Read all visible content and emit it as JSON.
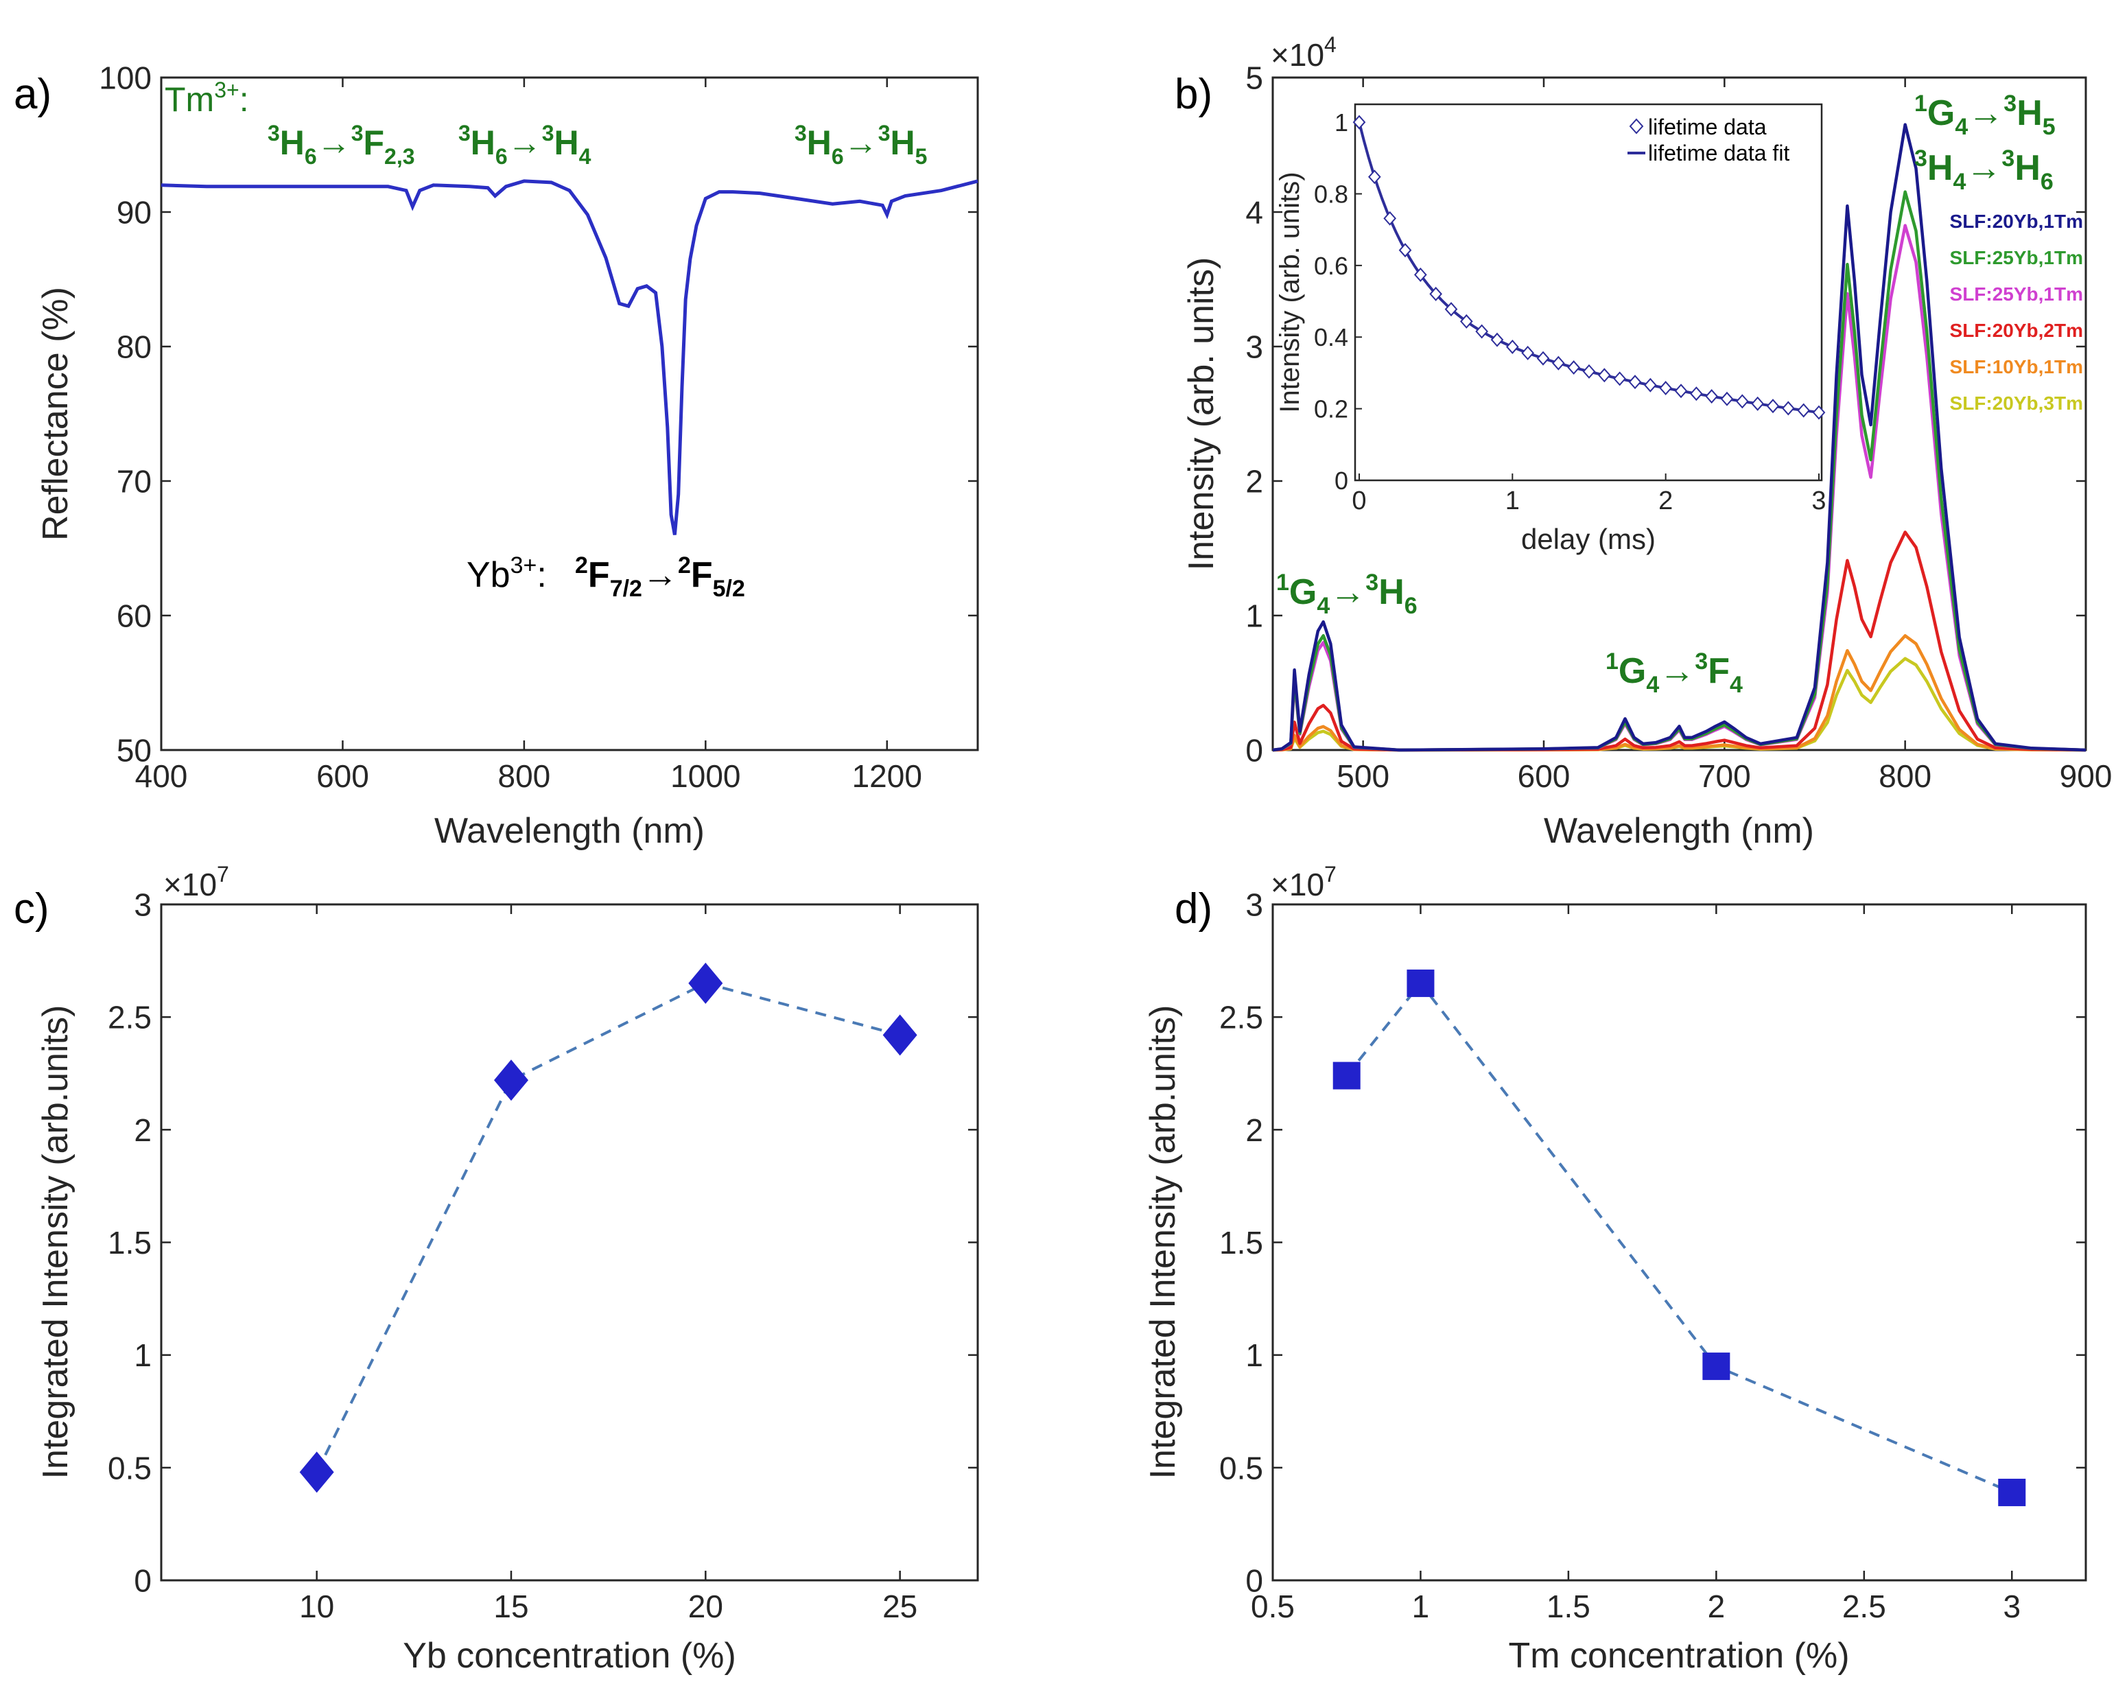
{
  "colors": {
    "line_blue": "#2b2fc4",
    "marker_blue": "#2222cc",
    "dash_blue": "#4a7ab5",
    "label_green": "#1f7a1f",
    "inset_line": "#2e2e9a"
  },
  "chart_data": [
    {
      "panel": "a)",
      "type": "line",
      "title": "",
      "xlabel": "Wavelength (nm)",
      "ylabel": "Reflectance (%)",
      "xlim": [
        400,
        1300
      ],
      "ylim": [
        50,
        100
      ],
      "xticks": [
        "400",
        "600",
        "800",
        "1000",
        "1200"
      ],
      "yticks": [
        "50",
        "60",
        "70",
        "80",
        "90",
        "100"
      ],
      "series": [
        {
          "name": "reflectance",
          "x": [
            400,
            450,
            500,
            550,
            600,
            650,
            670,
            677,
            685,
            700,
            740,
            760,
            768,
            780,
            800,
            830,
            850,
            870,
            890,
            905,
            915,
            925,
            935,
            945,
            952,
            958,
            962,
            966,
            970,
            974,
            978,
            983,
            990,
            1000,
            1015,
            1030,
            1060,
            1100,
            1140,
            1170,
            1195,
            1200,
            1205,
            1220,
            1260,
            1300
          ],
          "y": [
            92,
            91.9,
            91.9,
            91.9,
            91.9,
            91.9,
            91.6,
            90.4,
            91.6,
            92,
            91.9,
            91.8,
            91.2,
            91.9,
            92.3,
            92.2,
            91.6,
            89.8,
            86.6,
            83.2,
            83.0,
            84.3,
            84.5,
            84.0,
            80.0,
            74.0,
            67.5,
            66.0,
            69.0,
            77.0,
            83.5,
            86.5,
            89.0,
            91.0,
            91.5,
            91.5,
            91.4,
            91.0,
            90.6,
            90.8,
            90.5,
            89.8,
            90.8,
            91.2,
            91.6,
            92.3
          ]
        }
      ],
      "annotations": {
        "tm_prefix": "Tm",
        "tm_charge": "3+",
        "tm_colon": ":",
        "t1": {
          "a": "3",
          "b": "H",
          "c": "6",
          "d": "→",
          "e": "3",
          "f": "F",
          "g": "2,3"
        },
        "t2": {
          "a": "3",
          "b": "H",
          "c": "6",
          "d": "→",
          "e": "3",
          "f": "H",
          "g": "4"
        },
        "t3": {
          "a": "3",
          "b": "H",
          "c": "6",
          "d": "→",
          "e": "3",
          "f": "H",
          "g": "5"
        },
        "yb_prefix": "Yb",
        "yb_charge": "3+",
        "yb_colon": ":",
        "yb": {
          "a": "2",
          "b": "F",
          "c": "7/2",
          "d": "→",
          "e": "2",
          "f": "F",
          "g": "5/2"
        }
      }
    },
    {
      "panel": "b)",
      "type": "line",
      "xlabel": "Wavelength (nm)",
      "ylabel": "Intensity (arb. units)",
      "xlim": [
        450,
        900
      ],
      "ylim": [
        0,
        50000
      ],
      "multiplier_base": "×10",
      "multiplier_exp": "4",
      "xticks": [
        "500",
        "600",
        "700",
        "800",
        "900"
      ],
      "yticks": [
        "0",
        "1",
        "2",
        "3",
        "4",
        "5"
      ],
      "series": [
        {
          "name": "SLF:20Yb,1Tm",
          "color": "#1a1a8c",
          "peak": 46500
        },
        {
          "name": "SLF:25Yb,1Tm",
          "color": "#2e9a2e",
          "peak": 41500
        },
        {
          "name": "SLF:25Yb,1Tm",
          "color": "#d040d0",
          "peak": 39000
        },
        {
          "name": "SLF:20Yb,2Tm",
          "color": "#e02020",
          "peak": 16200
        },
        {
          "name": "SLF:10Yb,1Tm",
          "color": "#f08a20",
          "peak": 8500
        },
        {
          "name": "SLF:20Yb,3Tm",
          "color": "#c8c820",
          "peak": 6800
        }
      ],
      "peak_shape": {
        "x": [
          450,
          455,
          460,
          462,
          465,
          470,
          475,
          478,
          482,
          488,
          495,
          520,
          600,
          630,
          640,
          645,
          650,
          655,
          662,
          670,
          675,
          678,
          682,
          690,
          695,
          700,
          705,
          712,
          720,
          740,
          750,
          757,
          762,
          768,
          772,
          776,
          781,
          786,
          792,
          800,
          806,
          812,
          820,
          830,
          840,
          850,
          870,
          900
        ],
        "y": [
          0,
          0.002,
          0.012,
          0.128,
          0.03,
          0.12,
          0.19,
          0.205,
          0.17,
          0.04,
          0.005,
          0,
          0.002,
          0.004,
          0.02,
          0.05,
          0.02,
          0.01,
          0.012,
          0.02,
          0.038,
          0.02,
          0.02,
          0.03,
          0.038,
          0.045,
          0.035,
          0.02,
          0.01,
          0.02,
          0.1,
          0.3,
          0.6,
          0.87,
          0.75,
          0.6,
          0.52,
          0.68,
          0.86,
          1.0,
          0.93,
          0.75,
          0.45,
          0.18,
          0.05,
          0.01,
          0.003,
          0
        ]
      },
      "annotations": {
        "g1": {
          "a": "1",
          "b": "G",
          "c": "4",
          "d": "→",
          "e": "3",
          "f": "H",
          "g": "6"
        },
        "g2": {
          "a": "1",
          "b": "G",
          "c": "4",
          "d": "→",
          "e": "3",
          "f": "F",
          "g": "4"
        },
        "g3": {
          "a": "1",
          "b": "G",
          "c": "4",
          "d": "→",
          "e": "3",
          "f": "H",
          "g": "5"
        },
        "g4": {
          "a": "3",
          "b": "H",
          "c": "4",
          "d": "→",
          "e": "3",
          "f": "H",
          "g": "6"
        }
      },
      "inset": {
        "type": "scatter+line",
        "xlabel": "delay (ms)",
        "ylabel": "Intensity (arb. units)",
        "xlim": [
          0,
          3
        ],
        "ylim": [
          0,
          1.05
        ],
        "xticks": [
          "0",
          "1",
          "2",
          "3"
        ],
        "yticks": [
          "0",
          "0.2",
          "0.4",
          "0.6",
          "0.8",
          "1"
        ],
        "legend": [
          "lifetime data",
          "lifetime data fit"
        ],
        "model": {
          "a1": 0.53,
          "t1": 0.33,
          "a2": 0.47,
          "t2": 3.3
        }
      }
    },
    {
      "panel": "c)",
      "type": "scatter",
      "marker": "diamond",
      "xlabel": "Yb concentration  (%)",
      "ylabel": "Integrated Intensity (arb.units)",
      "xlim": [
        6,
        27
      ],
      "ylim": [
        0,
        30000000
      ],
      "multiplier_base": "×10",
      "multiplier_exp": "7",
      "xticks": [
        "10",
        "15",
        "20",
        "25"
      ],
      "yticks": [
        "0",
        "0.5",
        "1",
        "1.5",
        "2",
        "2.5",
        "3"
      ],
      "x": [
        10,
        15,
        20,
        25
      ],
      "y": [
        4800000,
        22200000,
        26500000,
        24200000
      ]
    },
    {
      "panel": "d)",
      "type": "scatter",
      "marker": "square",
      "xlabel": "Tm concentration  (%)",
      "ylabel": "Integrated Intensity (arb.units)",
      "xlim": [
        0.5,
        3.25
      ],
      "ylim": [
        0,
        30000000
      ],
      "multiplier_base": "×10",
      "multiplier_exp": "7",
      "xticks": [
        "0.5",
        "1",
        "1.5",
        "2",
        "2.5",
        "3"
      ],
      "yticks": [
        "0",
        "0.5",
        "1",
        "1.5",
        "2",
        "2.5",
        "3"
      ],
      "x": [
        0.75,
        1,
        2,
        3
      ],
      "y": [
        22400000,
        26500000,
        9500000,
        3900000
      ]
    }
  ]
}
